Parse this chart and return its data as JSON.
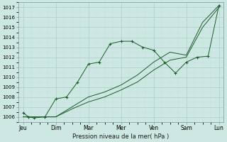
{
  "xlabel": "Pression niveau de la mer( hPa )",
  "ylim": [
    1005.5,
    1017.5
  ],
  "yticks": [
    1006,
    1007,
    1008,
    1009,
    1010,
    1011,
    1012,
    1013,
    1014,
    1015,
    1016,
    1017
  ],
  "background_color": "#cde8e2",
  "grid_color_major": "#b0cccc",
  "grid_color_minor": "#c4dada",
  "line_color": "#1a5c2a",
  "day_labels": [
    "Jeu",
    "Dim",
    "Mar",
    "Mer",
    "Ven",
    "Sam",
    "Lun"
  ],
  "day_positions": [
    0,
    1,
    2,
    3,
    4,
    5,
    6
  ],
  "series1_x": [
    0.0,
    0.17,
    0.33,
    0.67,
    1.0,
    1.33,
    1.67,
    2.0,
    2.33,
    2.67,
    3.0,
    3.33,
    3.67,
    4.0,
    4.33,
    4.67,
    5.0,
    5.33,
    5.67,
    6.0
  ],
  "series1_y": [
    1006.4,
    1006.0,
    1005.9,
    1006.0,
    1007.8,
    1008.0,
    1009.5,
    1011.3,
    1011.5,
    1013.35,
    1013.6,
    1013.6,
    1013.0,
    1012.7,
    1011.5,
    1010.4,
    1011.5,
    1012.0,
    1012.1,
    1017.2
  ],
  "series2_x": [
    0.0,
    0.5,
    1.0,
    1.5,
    2.0,
    2.5,
    3.0,
    3.5,
    4.0,
    4.5,
    5.0,
    5.5,
    6.0
  ],
  "series2_y": [
    1006.0,
    1006.0,
    1006.0,
    1007.0,
    1008.0,
    1008.5,
    1009.2,
    1010.2,
    1011.5,
    1012.5,
    1012.2,
    1015.5,
    1017.2
  ],
  "series3_x": [
    0.0,
    0.5,
    1.0,
    1.5,
    2.0,
    2.5,
    3.0,
    3.5,
    4.0,
    4.5,
    5.0,
    5.5,
    6.0
  ],
  "series3_y": [
    1006.0,
    1006.0,
    1006.0,
    1006.8,
    1007.5,
    1008.0,
    1008.7,
    1009.5,
    1010.7,
    1011.7,
    1012.0,
    1015.0,
    1017.0
  ]
}
